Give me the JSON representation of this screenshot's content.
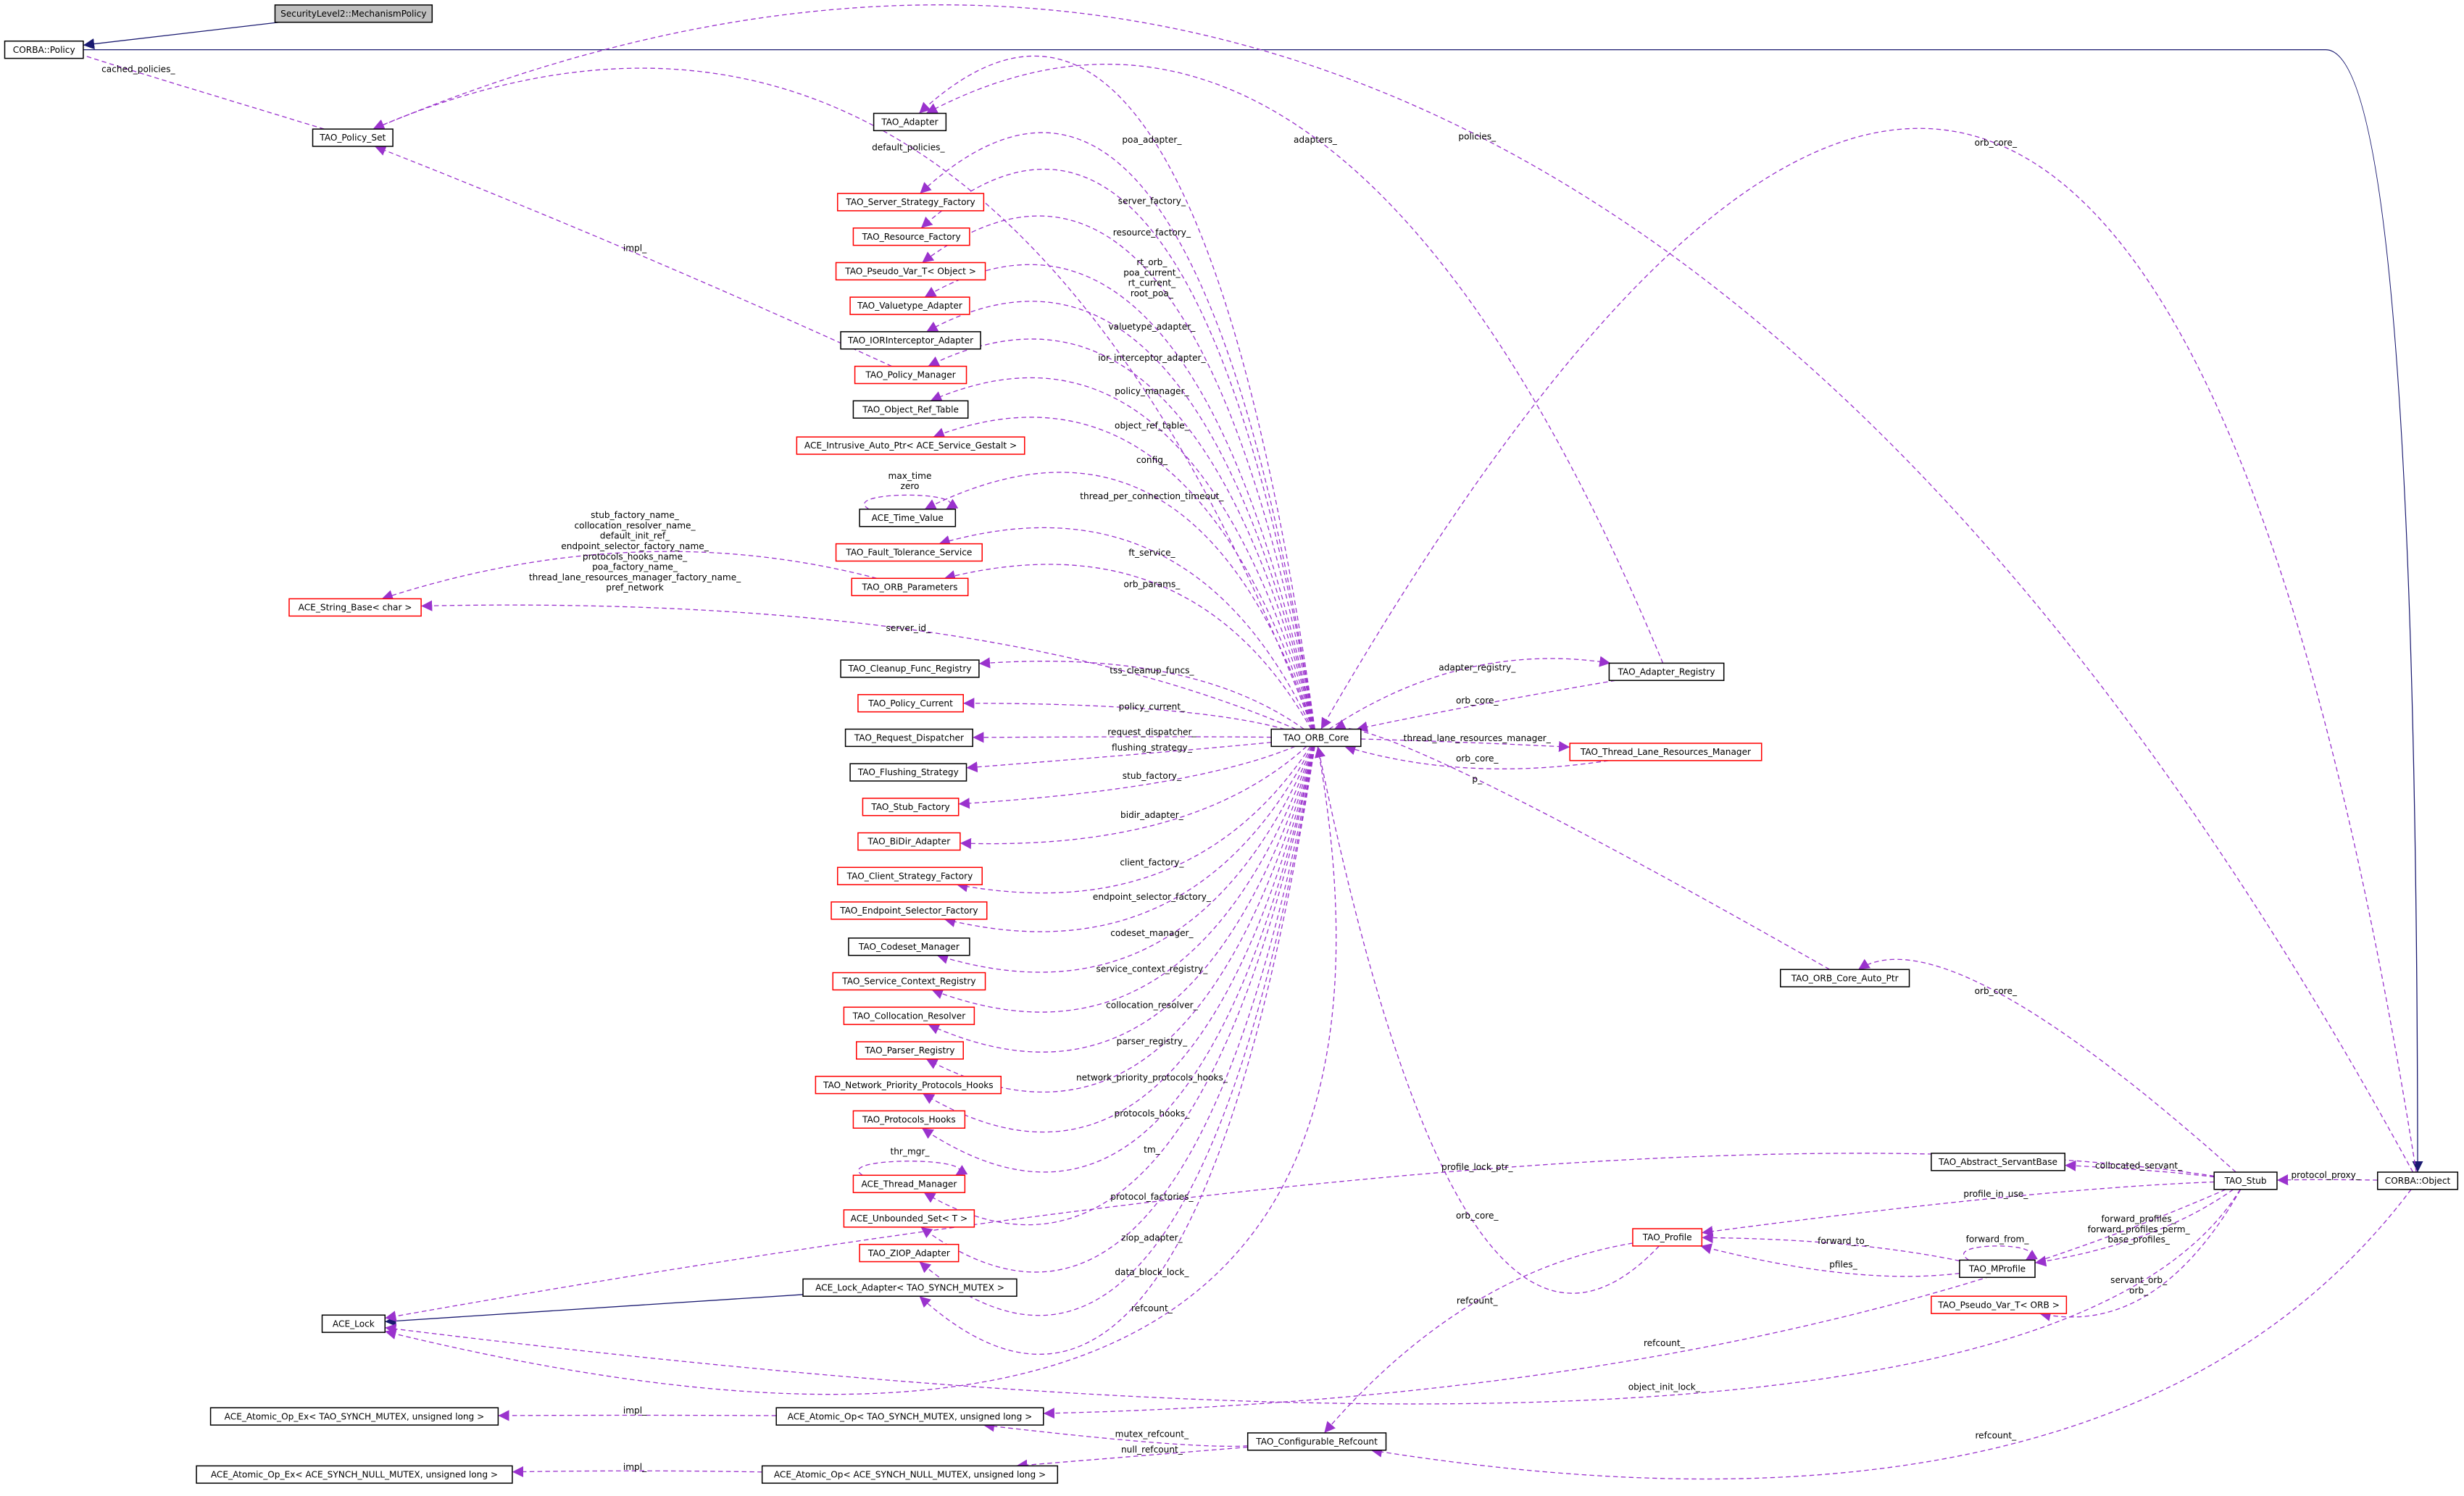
{
  "nodes": [
    {
      "label": "SecurityLevel2::MechanismPolicy",
      "color": "#000000",
      "fill": "#bfbfbf"
    },
    {
      "label": "CORBA::Policy",
      "color": "#000000"
    },
    {
      "label": "TAO_Policy_Set",
      "color": "#000000"
    },
    {
      "label": "TAO_Adapter",
      "color": "#000000"
    },
    {
      "label": "TAO_Server_Strategy_Factory",
      "color": "#ff0000"
    },
    {
      "label": "TAO_Resource_Factory",
      "color": "#ff0000"
    },
    {
      "label": "TAO_Pseudo_Var_T< Object >",
      "color": "#ff0000"
    },
    {
      "label": "TAO_Valuetype_Adapter",
      "color": "#ff0000"
    },
    {
      "label": "TAO_IORInterceptor_Adapter",
      "color": "#000000"
    },
    {
      "label": "TAO_Policy_Manager",
      "color": "#ff0000"
    },
    {
      "label": "TAO_Object_Ref_Table",
      "color": "#000000"
    },
    {
      "label": "ACE_Intrusive_Auto_Ptr< ACE_Service_Gestalt >",
      "color": "#ff0000"
    },
    {
      "label": "ACE_Time_Value",
      "color": "#000000"
    },
    {
      "label": "TAO_Fault_Tolerance_Service",
      "color": "#ff0000"
    },
    {
      "label": "TAO_ORB_Parameters",
      "color": "#ff0000"
    },
    {
      "label": "ACE_String_Base< char >",
      "color": "#ff0000"
    },
    {
      "label": "TAO_Cleanup_Func_Registry",
      "color": "#000000"
    },
    {
      "label": "TAO_Policy_Current",
      "color": "#ff0000"
    },
    {
      "label": "TAO_Request_Dispatcher",
      "color": "#000000"
    },
    {
      "label": "TAO_Flushing_Strategy",
      "color": "#000000"
    },
    {
      "label": "TAO_Stub_Factory",
      "color": "#ff0000"
    },
    {
      "label": "TAO_BiDir_Adapter",
      "color": "#ff0000"
    },
    {
      "label": "TAO_Client_Strategy_Factory",
      "color": "#ff0000"
    },
    {
      "label": "TAO_Endpoint_Selector_Factory",
      "color": "#ff0000"
    },
    {
      "label": "TAO_Codeset_Manager",
      "color": "#000000"
    },
    {
      "label": "TAO_Service_Context_Registry",
      "color": "#ff0000"
    },
    {
      "label": "TAO_Collocation_Resolver",
      "color": "#ff0000"
    },
    {
      "label": "TAO_Parser_Registry",
      "color": "#ff0000"
    },
    {
      "label": "TAO_Network_Priority_Protocols_Hooks",
      "color": "#ff0000"
    },
    {
      "label": "TAO_Protocols_Hooks",
      "color": "#ff0000"
    },
    {
      "label": "ACE_Thread_Manager",
      "color": "#ff0000"
    },
    {
      "label": "ACE_Unbounded_Set< T >",
      "color": "#ff0000"
    },
    {
      "label": "TAO_ZIOP_Adapter",
      "color": "#ff0000"
    },
    {
      "label": "ACE_Lock_Adapter< TAO_SYNCH_MUTEX >",
      "color": "#000000"
    },
    {
      "label": "ACE_Lock",
      "color": "#000000"
    },
    {
      "label": "ACE_Atomic_Op_Ex< TAO_SYNCH_MUTEX, unsigned long >",
      "color": "#000000"
    },
    {
      "label": "ACE_Atomic_Op< TAO_SYNCH_MUTEX, unsigned long >",
      "color": "#000000"
    },
    {
      "label": "ACE_Atomic_Op_Ex< ACE_SYNCH_NULL_MUTEX, unsigned long >",
      "color": "#000000"
    },
    {
      "label": "ACE_Atomic_Op< ACE_SYNCH_NULL_MUTEX, unsigned long >",
      "color": "#000000"
    },
    {
      "label": "TAO_ORB_Core",
      "color": "#000000"
    },
    {
      "label": "TAO_Adapter_Registry",
      "color": "#000000"
    },
    {
      "label": "TAO_Thread_Lane_Resources_Manager",
      "color": "#ff0000"
    },
    {
      "label": "TAO_ORB_Core_Auto_Ptr",
      "color": "#000000"
    },
    {
      "label": "TAO_Abstract_ServantBase",
      "color": "#000000"
    },
    {
      "label": "TAO_Stub",
      "color": "#000000"
    },
    {
      "label": "CORBA::Object",
      "color": "#000000"
    },
    {
      "label": "TAO_Profile",
      "color": "#ff0000"
    },
    {
      "label": "TAO_MProfile",
      "color": "#000000"
    },
    {
      "label": "TAO_Pseudo_Var_T< ORB >",
      "color": "#ff0000"
    },
    {
      "label": "TAO_Configurable_Refcount",
      "color": "#000000"
    }
  ],
  "edges": [
    {
      "from": 0,
      "to": 1,
      "kind": "inheritance"
    },
    {
      "from": 1,
      "to": 45,
      "kind": "inheritance"
    },
    {
      "from": 33,
      "to": 34,
      "kind": "inheritance"
    },
    {
      "from": 2,
      "to": 1,
      "labels": [
        "cached_policies_"
      ]
    },
    {
      "from": 45,
      "to": 2,
      "labels": [
        "policies_"
      ]
    },
    {
      "from": 39,
      "to": 2,
      "labels": [
        "default_policies_"
      ]
    },
    {
      "from": 39,
      "to": 3,
      "labels": [
        "poa_adapter_"
      ]
    },
    {
      "from": 40,
      "to": 3,
      "labels": [
        "adapters_"
      ]
    },
    {
      "from": 39,
      "to": 4,
      "labels": [
        "server_factory_"
      ]
    },
    {
      "from": 39,
      "to": 5,
      "labels": [
        "resource_factory_"
      ]
    },
    {
      "from": 39,
      "to": 6,
      "labels": [
        "rt_orb_",
        "poa_current_",
        "rt_current_",
        "root_poa_"
      ]
    },
    {
      "from": 39,
      "to": 7,
      "labels": [
        "valuetype_adapter_"
      ]
    },
    {
      "from": 39,
      "to": 8,
      "labels": [
        "ior_interceptor_adapter_"
      ]
    },
    {
      "from": 39,
      "to": 9,
      "labels": [
        "policy_manager_"
      ]
    },
    {
      "from": 39,
      "to": 10,
      "labels": [
        "object_ref_table_"
      ]
    },
    {
      "from": 39,
      "to": 11,
      "labels": [
        "config_"
      ]
    },
    {
      "from": 39,
      "to": 12,
      "labels": [
        "thread_per_connection_timeout_"
      ]
    },
    {
      "from": 12,
      "to": 12,
      "labels": [
        "max_time",
        "zero"
      ]
    },
    {
      "from": 9,
      "to": 2,
      "labels": [
        "impl_"
      ]
    },
    {
      "from": 39,
      "to": 13,
      "labels": [
        "ft_service_"
      ]
    },
    {
      "from": 39,
      "to": 14,
      "labels": [
        "orb_params_"
      ]
    },
    {
      "from": 14,
      "to": 15,
      "labels": [
        "stub_factory_name_",
        "collocation_resolver_name_",
        "default_init_ref_",
        "endpoint_selector_factory_name_",
        "protocols_hooks_name_",
        "poa_factory_name_",
        "thread_lane_resources_manager_factory_name_",
        "pref_network"
      ]
    },
    {
      "from": 39,
      "to": 15,
      "labels": [
        "server_id_"
      ]
    },
    {
      "from": 39,
      "to": 16,
      "labels": [
        "tss_cleanup_funcs_"
      ]
    },
    {
      "from": 39,
      "to": 17,
      "labels": [
        "policy_current_"
      ]
    },
    {
      "from": 39,
      "to": 18,
      "labels": [
        "request_dispatcher_"
      ]
    },
    {
      "from": 39,
      "to": 19,
      "labels": [
        "flushing_strategy_"
      ]
    },
    {
      "from": 39,
      "to": 20,
      "labels": [
        "stub_factory_"
      ]
    },
    {
      "from": 39,
      "to": 21,
      "labels": [
        "bidir_adapter_"
      ]
    },
    {
      "from": 39,
      "to": 22,
      "labels": [
        "client_factory_"
      ]
    },
    {
      "from": 39,
      "to": 23,
      "labels": [
        "endpoint_selector_factory_"
      ]
    },
    {
      "from": 39,
      "to": 24,
      "labels": [
        "codeset_manager_"
      ]
    },
    {
      "from": 39,
      "to": 25,
      "labels": [
        "service_context_registry_"
      ]
    },
    {
      "from": 39,
      "to": 26,
      "labels": [
        "collocation_resolver_"
      ]
    },
    {
      "from": 39,
      "to": 27,
      "labels": [
        "parser_registry_"
      ]
    },
    {
      "from": 39,
      "to": 28,
      "labels": [
        "network_priority_protocols_hooks_"
      ]
    },
    {
      "from": 39,
      "to": 29,
      "labels": [
        "protocols_hooks_"
      ]
    },
    {
      "from": 39,
      "to": 30,
      "labels": [
        "tm_"
      ]
    },
    {
      "from": 30,
      "to": 30,
      "labels": [
        "thr_mgr_"
      ]
    },
    {
      "from": 39,
      "to": 31,
      "labels": [
        "protocol_factories_"
      ]
    },
    {
      "from": 39,
      "to": 32,
      "labels": [
        "ziop_adapter_"
      ]
    },
    {
      "from": 39,
      "to": 33,
      "labels": [
        "data_block_lock_"
      ]
    },
    {
      "from": 39,
      "to": 34,
      "labels": [
        "refcount_"
      ]
    },
    {
      "from": 44,
      "to": 34,
      "labels": [
        "profile_lock_ptr_"
      ]
    },
    {
      "from": 44,
      "to": 34,
      "labels": [
        "object_init_lock_"
      ]
    },
    {
      "from": 44,
      "to": 36,
      "labels": [
        "refcount_"
      ]
    },
    {
      "from": 36,
      "to": 35,
      "labels": [
        "impl_"
      ]
    },
    {
      "from": 38,
      "to": 37,
      "labels": [
        "impl_"
      ]
    },
    {
      "from": 49,
      "to": 36,
      "labels": [
        "mutex_refcount_"
      ]
    },
    {
      "from": 49,
      "to": 38,
      "labels": [
        "null_refcount_"
      ]
    },
    {
      "from": 39,
      "to": 40,
      "labels": [
        "adapter_registry_"
      ]
    },
    {
      "from": 40,
      "to": 39,
      "labels": [
        "orb_core_"
      ]
    },
    {
      "from": 39,
      "to": 41,
      "labels": [
        "thread_lane_resources_manager_"
      ]
    },
    {
      "from": 41,
      "to": 39,
      "labels": [
        "orb_core_"
      ]
    },
    {
      "from": 42,
      "to": 39,
      "labels": [
        "p_"
      ]
    },
    {
      "from": 45,
      "to": 39,
      "labels": [
        "orb_core_"
      ]
    },
    {
      "from": 46,
      "to": 39,
      "labels": [
        "orb_core_"
      ]
    },
    {
      "from": 44,
      "to": 42,
      "labels": [
        "orb_core_"
      ]
    },
    {
      "from": 44,
      "to": 43,
      "labels": [
        "collocated_servant_"
      ]
    },
    {
      "from": 45,
      "to": 44,
      "labels": [
        "protocol_proxy_"
      ]
    },
    {
      "from": 44,
      "to": 46,
      "labels": [
        "profile_in_use_"
      ]
    },
    {
      "from": 47,
      "to": 46,
      "labels": [
        "forward_to_"
      ]
    },
    {
      "from": 47,
      "to": 46,
      "labels": [
        "pfiles_"
      ]
    },
    {
      "from": 47,
      "to": 47,
      "labels": [
        "forward_from_"
      ]
    },
    {
      "from": 44,
      "to": 47,
      "labels": [
        "forward_profiles_",
        "forward_profiles_perm_",
        "base_profiles_"
      ]
    },
    {
      "from": 44,
      "to": 48,
      "labels": [
        "servant_orb_",
        "orb_"
      ]
    },
    {
      "from": 46,
      "to": 49,
      "labels": [
        "refcount_"
      ]
    },
    {
      "from": 45,
      "to": 49,
      "labels": [
        "refcount_"
      ]
    }
  ]
}
